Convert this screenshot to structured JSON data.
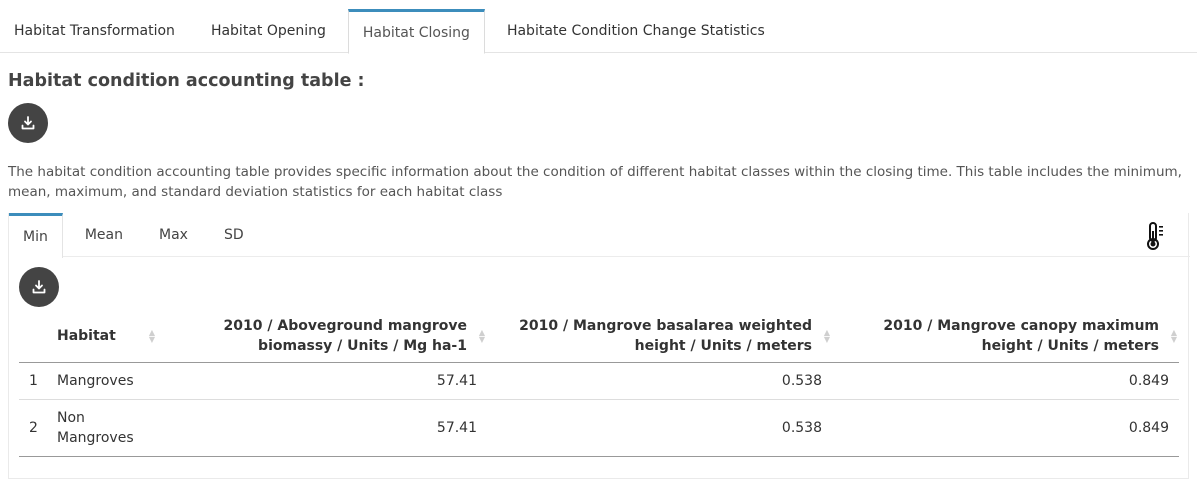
{
  "top_tabs": [
    {
      "label": "Habitat Transformation",
      "active": false
    },
    {
      "label": "Habitat Opening",
      "active": false
    },
    {
      "label": "Habitat Closing",
      "active": true
    },
    {
      "label": "Habitate Condition Change Statistics",
      "active": false
    }
  ],
  "section": {
    "title": "Habitat condition accounting table :",
    "description": "The habitat condition accounting table provides specific information about the condition of different habitat classes within the closing time. This table includes the minimum, mean, maximum, and standard deviation statistics for each habitat class"
  },
  "sub_tabs": [
    {
      "label": "Min",
      "active": true
    },
    {
      "label": "Mean",
      "active": false
    },
    {
      "label": "Max",
      "active": false
    },
    {
      "label": "SD",
      "active": false
    }
  ],
  "table": {
    "headers": [
      "",
      "Habitat",
      "2010 / Aboveground mangrove biomassy / Units / Mg ha-1",
      "2010 / Mangrove basalarea weighted height / Units / meters",
      "2010 / Mangrove canopy maximum height / Units / meters"
    ],
    "rows": [
      [
        "1",
        "Mangroves",
        "57.41",
        "0.538",
        "0.849"
      ],
      [
        "2",
        "Non Mangroves",
        "57.41",
        "0.538",
        "0.849"
      ]
    ]
  },
  "icons": {
    "download": "download-icon",
    "thermometer": "thermometer-icon"
  },
  "colors": {
    "accent": "#3c8dbc",
    "button": "#444444"
  }
}
